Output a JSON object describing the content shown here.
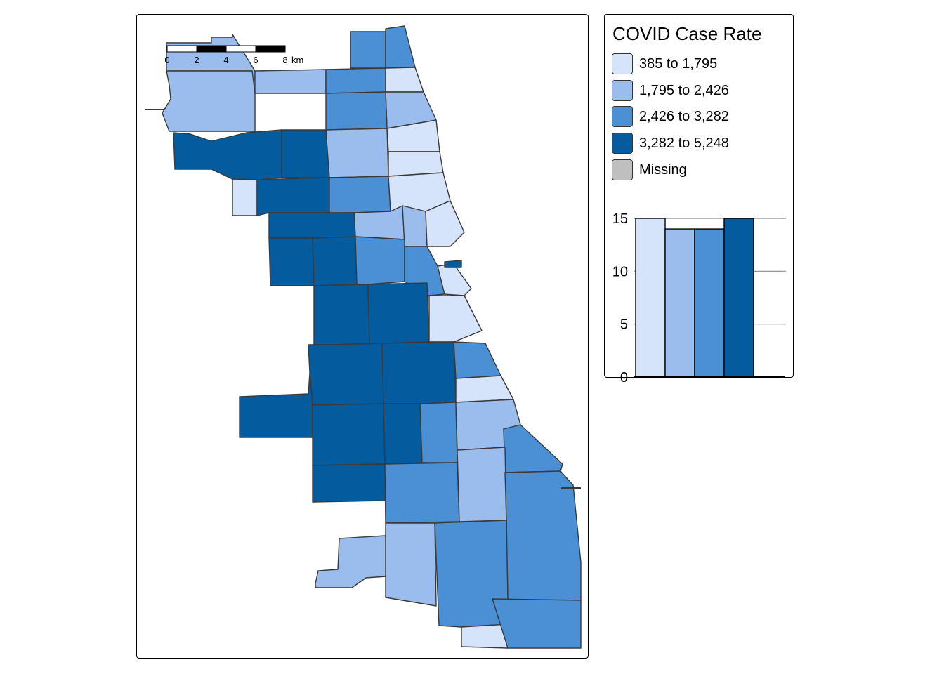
{
  "legend": {
    "title": "COVID Case Rate",
    "items": [
      {
        "label": "385 to 1,795",
        "color": "#d6e4fb"
      },
      {
        "label": "1,795 to 2,426",
        "color": "#9bbdee"
      },
      {
        "label": "2,426 to 3,282",
        "color": "#4b8fd4"
      },
      {
        "label": "3,282 to 5,248",
        "color": "#045c9e"
      },
      {
        "label": "Missing",
        "color": "#bfbfbf"
      }
    ]
  },
  "scale_bar": {
    "ticks": [
      "0",
      "2",
      "4",
      "6",
      "8"
    ],
    "unit": "km"
  },
  "chart_data": {
    "type": "bar",
    "categories": [
      "385 to 1,795",
      "1,795 to 2,426",
      "2,426 to 3,282",
      "3,282 to 5,248"
    ],
    "values": [
      15,
      14,
      14,
      15
    ],
    "colors": [
      "#d6e4fb",
      "#9bbdee",
      "#4b8fd4",
      "#045c9e"
    ],
    "ylim": [
      0,
      15
    ],
    "yticks": [
      "0",
      "5",
      "10",
      "15"
    ],
    "grid": true
  },
  "map": {
    "zones": [
      {
        "name": "zip-north-tip",
        "cls": 3
      },
      {
        "name": "zip-north-center",
        "cls": 3
      },
      {
        "name": "zip-north-lake-1",
        "cls": 1
      },
      {
        "name": "zip-northwest-1",
        "cls": 2
      },
      {
        "name": "zip-northwest-2",
        "cls": 2
      },
      {
        "name": "zip-north-3",
        "cls": 3
      },
      {
        "name": "zip-north-lake-2",
        "cls": 2
      },
      {
        "name": "zip-northwest-3",
        "cls": 2
      },
      {
        "name": "zip-north-4",
        "cls": 3
      },
      {
        "name": "zip-north-lake-3",
        "cls": 1
      },
      {
        "name": "zip-ohare-west",
        "cls": 4
      },
      {
        "name": "zip-northwest-4",
        "cls": 4
      },
      {
        "name": "zip-north-5",
        "cls": 2
      },
      {
        "name": "zip-north-lake-4",
        "cls": 1
      },
      {
        "name": "zip-northwest-small",
        "cls": 1
      },
      {
        "name": "zip-northwest-5",
        "cls": 4
      },
      {
        "name": "zip-north-6",
        "cls": 3
      },
      {
        "name": "zip-north-lake-5",
        "cls": 1
      },
      {
        "name": "zip-near-north-a",
        "cls": 2
      },
      {
        "name": "zip-near-north-b",
        "cls": 2
      },
      {
        "name": "zip-near-north-lake",
        "cls": 1
      },
      {
        "name": "zip-west-1",
        "cls": 4
      },
      {
        "name": "zip-west-2",
        "cls": 4
      },
      {
        "name": "zip-west-3",
        "cls": 4
      },
      {
        "name": "zip-near-west",
        "cls": 3
      },
      {
        "name": "zip-loop-west",
        "cls": 3
      },
      {
        "name": "zip-loop",
        "cls": 1
      },
      {
        "name": "zip-loop-small",
        "cls": 4
      },
      {
        "name": "zip-west-4",
        "cls": 4
      },
      {
        "name": "zip-west-5",
        "cls": 4
      },
      {
        "name": "zip-south-lake-1",
        "cls": 1
      },
      {
        "name": "zip-southwest-1",
        "cls": 4
      },
      {
        "name": "zip-southwest-2",
        "cls": 4
      },
      {
        "name": "zip-south-1",
        "cls": 3
      },
      {
        "name": "zip-south-lake-2",
        "cls": 1
      },
      {
        "name": "zip-southwest-west",
        "cls": 4
      },
      {
        "name": "zip-southwest-3",
        "cls": 4
      },
      {
        "name": "zip-south-2",
        "cls": 4
      },
      {
        "name": "zip-south-3",
        "cls": 3
      },
      {
        "name": "zip-south-4",
        "cls": 2
      },
      {
        "name": "zip-south-lake-3",
        "cls": 3
      },
      {
        "name": "zip-southwest-4",
        "cls": 4
      },
      {
        "name": "zip-south-5",
        "cls": 3
      },
      {
        "name": "zip-south-6",
        "cls": 2
      },
      {
        "name": "zip-southeast-1",
        "cls": 3
      },
      {
        "name": "zip-far-south-west",
        "cls": 2
      },
      {
        "name": "zip-far-south-1",
        "cls": 2
      },
      {
        "name": "zip-far-south-2",
        "cls": 3
      },
      {
        "name": "zip-far-south-3",
        "cls": 1
      },
      {
        "name": "zip-far-southeast",
        "cls": 3
      }
    ]
  }
}
